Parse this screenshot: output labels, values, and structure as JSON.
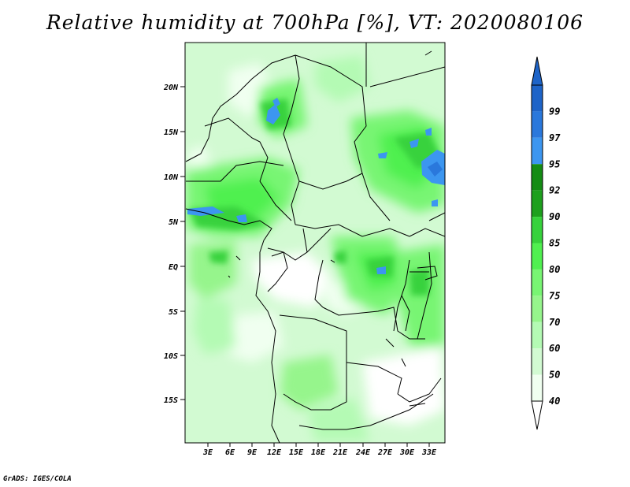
{
  "title": "Relative humidity at 700hPa [%], VT: 2020080106",
  "credit": "GrADS: IGES/COLA",
  "map": {
    "lat_labels": [
      "20N",
      "15N",
      "10N",
      "5N",
      "EQ",
      "5S",
      "10S",
      "15S"
    ],
    "lon_labels": [
      "3E",
      "6E",
      "9E",
      "12E",
      "15E",
      "18E",
      "21E",
      "24E",
      "27E",
      "30E",
      "33E"
    ]
  },
  "colorbar": {
    "levels": [
      "99",
      "97",
      "95",
      "92",
      "90",
      "85",
      "80",
      "75",
      "70",
      "60",
      "50",
      "40"
    ],
    "colors": [
      "#1e64c8",
      "#2a78dc",
      "#3c96f0",
      "#148c14",
      "#1ea01e",
      "#37d23c",
      "#50f050",
      "#78f573",
      "#96f58c",
      "#b4fab4",
      "#d2fad2",
      "#f0fff0"
    ],
    "above_color": "#1e64c8",
    "below_color": "#ffffff"
  }
}
